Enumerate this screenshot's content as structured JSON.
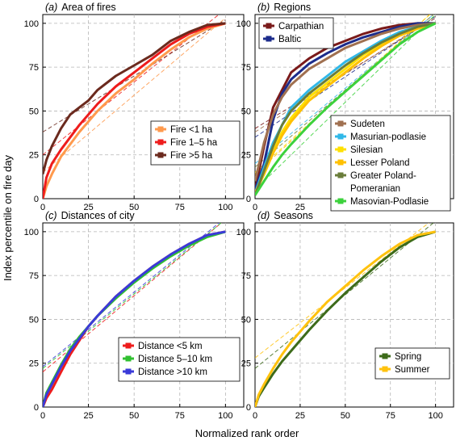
{
  "figure": {
    "xlabel": "Normalized rank order",
    "ylabel": "Index percentile on fire day"
  },
  "chart_data": [
    {
      "type": "line",
      "panel_letter": "(a)",
      "title": "Area of fires",
      "xlim": [
        0,
        110
      ],
      "ylim": [
        0,
        105
      ],
      "xticks": [
        "0",
        "25",
        "50",
        "75",
        "100"
      ],
      "yticks": [
        "0",
        "25",
        "50",
        "75",
        "100"
      ],
      "grid": true,
      "legend_position": "lower-right",
      "series": [
        {
          "name": "Fire <1 ha",
          "color": "#ff9a4d",
          "x": [
            0,
            2,
            5,
            10,
            20,
            30,
            40,
            50,
            60,
            70,
            80,
            90,
            100
          ],
          "y": [
            0,
            7,
            14,
            24,
            38,
            50,
            60,
            68,
            77,
            85,
            92,
            97,
            100
          ],
          "fit": [
            [
              0,
              15
            ],
            [
              100,
              103
            ]
          ]
        },
        {
          "name": "Fire 1–5 ha",
          "color": "#ee1c1c",
          "x": [
            0,
            2,
            5,
            10,
            20,
            30,
            40,
            50,
            60,
            70,
            80,
            90,
            100
          ],
          "y": [
            0,
            12,
            20,
            28,
            42,
            54,
            64,
            72,
            80,
            88,
            94,
            98,
            100
          ],
          "fit": [
            [
              0,
              25
            ],
            [
              100,
              108
            ]
          ]
        },
        {
          "name": "Fire >5 ha",
          "color": "#6b2a1e",
          "x": [
            0,
            2,
            5,
            10,
            15,
            20,
            25,
            30,
            40,
            50,
            60,
            70,
            80,
            90,
            100
          ],
          "y": [
            14,
            22,
            30,
            40,
            48,
            52,
            56,
            62,
            70,
            76,
            82,
            90,
            95,
            99,
            100
          ],
          "fit": [
            [
              0,
              38
            ],
            [
              100,
              102
            ]
          ]
        }
      ]
    },
    {
      "type": "line",
      "panel_letter": "(b)",
      "title": "Regions",
      "xlim": [
        0,
        110
      ],
      "ylim": [
        0,
        105
      ],
      "xticks": [
        "0",
        "25",
        "50",
        "75",
        "100"
      ],
      "yticks": [
        "0",
        "25",
        "50",
        "75",
        "100"
      ],
      "grid": true,
      "legend_position": "top-left and lower-right",
      "series": [
        {
          "name": "Carpathian",
          "color": "#7a1a1a",
          "x": [
            0,
            5,
            10,
            15,
            20,
            30,
            40,
            50,
            60,
            70,
            80,
            90,
            100
          ],
          "y": [
            5,
            30,
            52,
            62,
            72,
            80,
            86,
            90,
            94,
            97,
            99,
            100,
            100
          ],
          "fit": [
            [
              0,
              40
            ],
            [
              100,
              103
            ]
          ]
        },
        {
          "name": "Baltic",
          "color": "#1c2c8c",
          "x": [
            0,
            5,
            10,
            15,
            20,
            30,
            40,
            50,
            60,
            70,
            80,
            90,
            100
          ],
          "y": [
            5,
            20,
            45,
            60,
            68,
            77,
            83,
            88,
            92,
            95,
            98,
            100,
            100
          ],
          "fit": [
            [
              0,
              35
            ],
            [
              100,
              104
            ]
          ]
        },
        {
          "name": "Sudeten",
          "color": "#a07050",
          "x": [
            0,
            5,
            10,
            15,
            20,
            30,
            40,
            50,
            60,
            70,
            80,
            90,
            100
          ],
          "y": [
            10,
            32,
            48,
            58,
            65,
            74,
            80,
            86,
            90,
            94,
            97,
            99,
            100
          ],
          "fit": [
            [
              0,
              38
            ],
            [
              100,
              104
            ]
          ]
        },
        {
          "name": "Masurian-podlasie",
          "color": "#30b8e8",
          "x": [
            0,
            5,
            10,
            15,
            20,
            30,
            40,
            50,
            60,
            70,
            80,
            90,
            100
          ],
          "y": [
            3,
            18,
            32,
            42,
            52,
            62,
            70,
            78,
            84,
            90,
            95,
            98,
            100
          ],
          "fit": [
            [
              0,
              20
            ],
            [
              100,
              106
            ]
          ]
        },
        {
          "name": "Silesian",
          "color": "#ffe000",
          "x": [
            0,
            5,
            10,
            15,
            20,
            30,
            40,
            50,
            60,
            70,
            80,
            90,
            100
          ],
          "y": [
            3,
            15,
            28,
            38,
            46,
            58,
            66,
            74,
            82,
            88,
            93,
            97,
            100
          ],
          "fit": [
            [
              0,
              15
            ],
            [
              100,
              108
            ]
          ]
        },
        {
          "name": "Lesser Poland",
          "color": "#ffc000",
          "x": [
            0,
            5,
            10,
            15,
            20,
            30,
            40,
            50,
            60,
            70,
            80,
            90,
            100
          ],
          "y": [
            3,
            14,
            26,
            36,
            44,
            56,
            64,
            72,
            80,
            87,
            93,
            97,
            100
          ],
          "fit": [
            [
              0,
              14
            ],
            [
              100,
              108
            ]
          ]
        },
        {
          "name": "Greater Poland-Pomeranian",
          "color": "#6a7d3a",
          "x": [
            0,
            5,
            10,
            15,
            20,
            30,
            40,
            50,
            60,
            70,
            80,
            90,
            100
          ],
          "y": [
            2,
            16,
            30,
            42,
            50,
            60,
            68,
            76,
            83,
            89,
            94,
            98,
            100
          ],
          "fit": [
            [
              0,
              18
            ],
            [
              100,
              106
            ]
          ]
        },
        {
          "name": "Masovian-Podlasie",
          "color": "#3cd23c",
          "x": [
            0,
            5,
            10,
            15,
            20,
            30,
            40,
            50,
            60,
            70,
            80,
            90,
            100
          ],
          "y": [
            2,
            10,
            18,
            25,
            31,
            42,
            52,
            61,
            70,
            79,
            88,
            95,
            100
          ],
          "fit": [
            [
              0,
              5
            ],
            [
              100,
              105
            ]
          ]
        }
      ]
    },
    {
      "type": "line",
      "panel_letter": "(c)",
      "title": "Distances of city",
      "xlim": [
        0,
        110
      ],
      "ylim": [
        0,
        105
      ],
      "xticks": [
        "0",
        "25",
        "50",
        "75",
        "100"
      ],
      "yticks": [
        "0",
        "25",
        "50",
        "75",
        "100"
      ],
      "grid": true,
      "legend_position": "lower-right",
      "series": [
        {
          "name": "Distance <5 km",
          "color": "#ee1c1c",
          "x": [
            0,
            2,
            5,
            10,
            15,
            20,
            25,
            30,
            40,
            50,
            60,
            70,
            80,
            90,
            100
          ],
          "y": [
            0,
            5,
            10,
            20,
            30,
            38,
            46,
            52,
            63,
            72,
            80,
            87,
            93,
            98,
            100
          ],
          "fit": [
            [
              0,
              20
            ],
            [
              100,
              107
            ]
          ]
        },
        {
          "name": "Distance 5–10 km",
          "color": "#30c030",
          "x": [
            0,
            2,
            5,
            10,
            15,
            20,
            25,
            30,
            40,
            50,
            60,
            70,
            80,
            90,
            100
          ],
          "y": [
            0,
            8,
            14,
            24,
            33,
            40,
            46,
            52,
            62,
            71,
            79,
            86,
            92,
            97,
            100
          ],
          "fit": [
            [
              0,
              22
            ],
            [
              100,
              107
            ]
          ]
        },
        {
          "name": "Distance >10 km",
          "color": "#3a3ad8",
          "x": [
            0,
            2,
            5,
            10,
            15,
            20,
            25,
            30,
            40,
            50,
            60,
            70,
            80,
            90,
            100
          ],
          "y": [
            0,
            7,
            13,
            23,
            32,
            39,
            46,
            52,
            63,
            72,
            80,
            87,
            93,
            98,
            100
          ],
          "fit": [
            [
              0,
              23
            ],
            [
              100,
              108
            ]
          ]
        }
      ]
    },
    {
      "type": "line",
      "panel_letter": "(d)",
      "title": "Seasons",
      "xlim": [
        0,
        110
      ],
      "ylim": [
        0,
        105
      ],
      "xticks": [
        "0",
        "25",
        "50",
        "75",
        "100"
      ],
      "yticks": [
        "0",
        "25",
        "50",
        "75",
        "100"
      ],
      "grid": true,
      "legend_position": "lower-right",
      "series": [
        {
          "name": "Spring",
          "color": "#3d6b1a",
          "x": [
            0,
            2,
            5,
            10,
            15,
            20,
            25,
            30,
            40,
            50,
            60,
            70,
            80,
            90,
            100
          ],
          "y": [
            0,
            6,
            11,
            19,
            26,
            32,
            38,
            44,
            55,
            65,
            74,
            83,
            91,
            97,
            100
          ],
          "fit": [
            [
              0,
              22
            ],
            [
              100,
              106
            ]
          ]
        },
        {
          "name": "Summer",
          "color": "#ffc20e",
          "x": [
            0,
            2,
            5,
            10,
            15,
            20,
            25,
            30,
            40,
            50,
            60,
            70,
            80,
            90,
            100
          ],
          "y": [
            0,
            7,
            13,
            22,
            30,
            37,
            43,
            49,
            60,
            69,
            78,
            86,
            93,
            98,
            100
          ],
          "fit": [
            [
              0,
              28
            ],
            [
              100,
              108
            ]
          ]
        }
      ]
    }
  ]
}
